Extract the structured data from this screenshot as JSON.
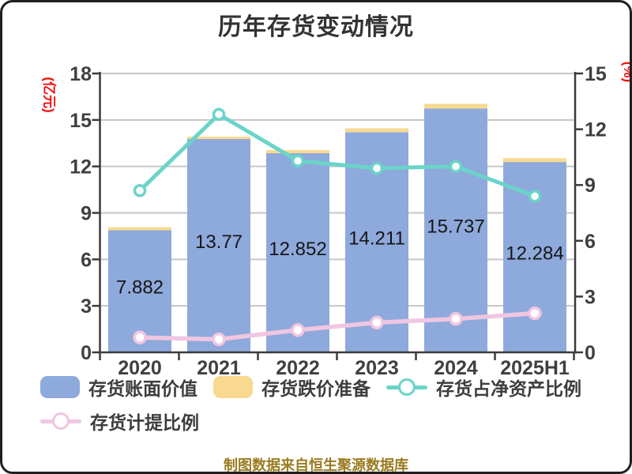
{
  "title": "历年存货变动情况",
  "source_note": "制图数据来自恒生聚源数据库",
  "axes": {
    "left": {
      "unit_label": "(亿元)",
      "ticks": [
        "0",
        "3",
        "6",
        "9",
        "12",
        "15",
        "18"
      ],
      "max": 18
    },
    "right": {
      "unit_label": "(%)",
      "ticks": [
        "0",
        "3",
        "6",
        "9",
        "12",
        "15"
      ],
      "max": 15
    }
  },
  "legend": {
    "items": [
      {
        "label": "存货账面价值",
        "type": "bar",
        "color": "#8EA9DB"
      },
      {
        "label": "存货跌价准备",
        "type": "bar",
        "color": "#F8D98F"
      },
      {
        "label": "存货占净资产比例",
        "type": "line",
        "color": "#6AD4C8"
      },
      {
        "label": "存货计提比例",
        "type": "line",
        "color": "#F0C6E1"
      }
    ]
  },
  "chart_data": {
    "type": "bar",
    "title": "历年存货变动情况",
    "categories": [
      "2020",
      "2021",
      "2022",
      "2023",
      "2024",
      "2025H1"
    ],
    "series": [
      {
        "name": "存货账面价值",
        "chart": "bar",
        "axis": "left",
        "color": "#8EA9DB",
        "values": [
          7.882,
          13.77,
          12.852,
          14.211,
          15.737,
          12.284
        ],
        "labels": [
          "7.882",
          "13.77",
          "12.852",
          "14.211",
          "15.737",
          "12.284"
        ]
      },
      {
        "name": "存货跌价准备",
        "chart": "bar-stacked-cap",
        "axis": "left",
        "color": "#F8D98F",
        "values": [
          0.2,
          0.15,
          0.2,
          0.25,
          0.3,
          0.25
        ]
      },
      {
        "name": "存货占净资产比例",
        "chart": "line",
        "axis": "right",
        "color": "#6AD4C8",
        "marker_fill": "#FFFFFF",
        "values": [
          8.7,
          12.8,
          10.3,
          9.9,
          10.0,
          8.4
        ]
      },
      {
        "name": "存货计提比例",
        "chart": "line",
        "axis": "right",
        "color": "#F0C6E1",
        "marker_fill": "#FFFFFF",
        "values": [
          0.8,
          0.7,
          1.2,
          1.6,
          1.8,
          2.1
        ]
      }
    ],
    "xlabel": "",
    "ylabel_left": "(亿元)",
    "ylabel_right": "(%)",
    "ylim_left": [
      0,
      18
    ],
    "ylim_right": [
      0,
      15
    ],
    "grid": true,
    "legend_position": "bottom"
  },
  "colors": {
    "background": "#FFFFFF",
    "frame_border": "#1F1F1F",
    "axis": "#3B3B3B",
    "grid": "#C6C6C6",
    "tick_label": "#3F3F3F",
    "bar_value_label": "#161616",
    "unit_label_red": "#F20D0D",
    "title_text": "#333333",
    "source_text": "#9A7B1E"
  }
}
